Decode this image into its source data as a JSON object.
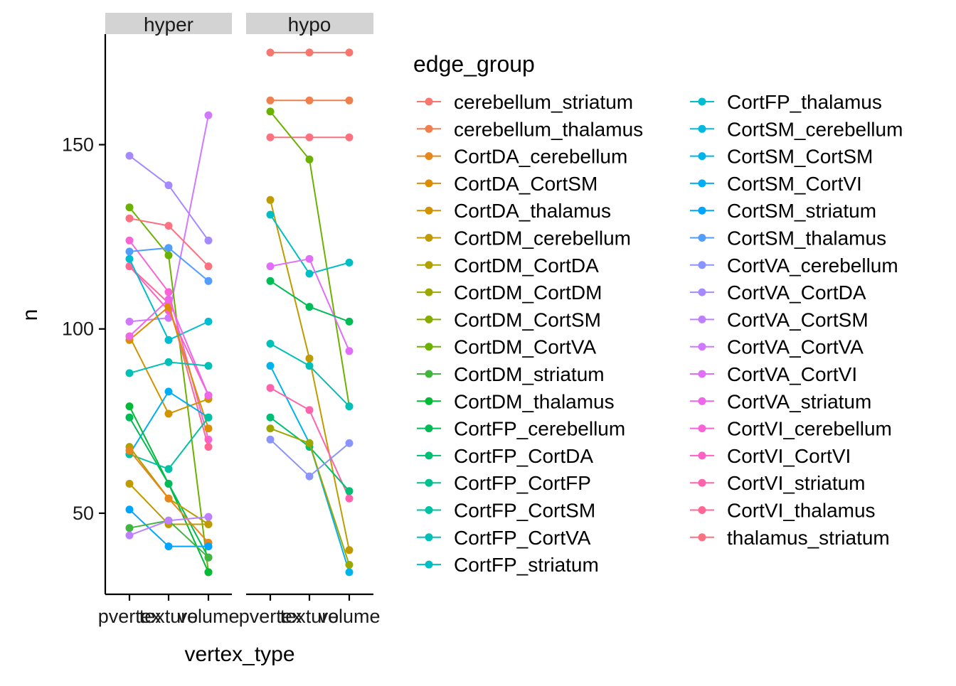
{
  "chart_data": {
    "type": "line",
    "x": [
      "pvertex",
      "texture",
      "volume"
    ],
    "xlabel": "vertex_type",
    "ylabel": "n",
    "ylim": [
      28,
      180
    ],
    "yticks": [
      50,
      100,
      150
    ],
    "grid": false,
    "legend_title": "edge_group",
    "legend_position": "right",
    "facets": [
      "hyper",
      "hypo"
    ],
    "groups": [
      {
        "name": "cerebellum_striatum",
        "color": "#F8766D"
      },
      {
        "name": "cerebellum_thalamus",
        "color": "#F07F4E"
      },
      {
        "name": "CortDA_cerebellum",
        "color": "#E7861B"
      },
      {
        "name": "CortDA_CortSM",
        "color": "#DB8E00"
      },
      {
        "name": "CortDA_thalamus",
        "color": "#CF9400"
      },
      {
        "name": "CortDM_cerebellum",
        "color": "#C09B00"
      },
      {
        "name": "CortDM_CortDA",
        "color": "#AFA100"
      },
      {
        "name": "CortDM_CortDM",
        "color": "#9CA700"
      },
      {
        "name": "CortDM_CortSM",
        "color": "#86AC00"
      },
      {
        "name": "CortDM_CortVA",
        "color": "#6BB100"
      },
      {
        "name": "CortDM_striatum",
        "color": "#42B540"
      },
      {
        "name": "CortDM_thalamus",
        "color": "#00BA38"
      },
      {
        "name": "CortFP_cerebellum",
        "color": "#00BC56"
      },
      {
        "name": "CortFP_CortDA",
        "color": "#00BF74"
      },
      {
        "name": "CortFP_CortFP",
        "color": "#00C08D"
      },
      {
        "name": "CortFP_CortSM",
        "color": "#00C1A3"
      },
      {
        "name": "CortFP_CortVA",
        "color": "#00C0B8"
      },
      {
        "name": "CortFP_striatum",
        "color": "#00BFC4"
      },
      {
        "name": "CortFP_thalamus",
        "color": "#00BDD0"
      },
      {
        "name": "CortSM_cerebellum",
        "color": "#00B9DE"
      },
      {
        "name": "CortSM_CortSM",
        "color": "#00B4EB"
      },
      {
        "name": "CortSM_CortVI",
        "color": "#00AEF6"
      },
      {
        "name": "CortSM_striatum",
        "color": "#00A5FF"
      },
      {
        "name": "CortSM_thalamus",
        "color": "#529EFF"
      },
      {
        "name": "CortVA_cerebellum",
        "color": "#8A94FF"
      },
      {
        "name": "CortVA_CortDA",
        "color": "#A58AFF"
      },
      {
        "name": "CortVA_CortSM",
        "color": "#BD81FF"
      },
      {
        "name": "CortVA_CortVA",
        "color": "#D078FF"
      },
      {
        "name": "CortVA_CortVI",
        "color": "#E26EF7"
      },
      {
        "name": "CortVA_striatum",
        "color": "#EE67E8"
      },
      {
        "name": "CortVI_cerebellum",
        "color": "#F863D7"
      },
      {
        "name": "CortVI_CortVI",
        "color": "#FD61C3"
      },
      {
        "name": "CortVI_striatum",
        "color": "#FF63AD"
      },
      {
        "name": "CortVI_thalamus",
        "color": "#FF6795"
      },
      {
        "name": "thalamus_striatum",
        "color": "#FC717F"
      }
    ],
    "series": {
      "hyper": [
        {
          "group": "CortVA_CortDA",
          "values": [
            147,
            139,
            124
          ]
        },
        {
          "group": "CortVA_CortVA",
          "values": [
            102,
            103,
            158
          ]
        },
        {
          "group": "CortDM_CortVA",
          "values": [
            133,
            120,
            34
          ]
        },
        {
          "group": "thalamus_striatum",
          "values": [
            130,
            128,
            117
          ]
        },
        {
          "group": "CortVI_cerebellum",
          "values": [
            124,
            110,
            70
          ]
        },
        {
          "group": "CortVI_CortVI",
          "values": [
            117,
            105,
            82
          ]
        },
        {
          "group": "CortVI_thalamus",
          "values": [
            117,
            107,
            68
          ]
        },
        {
          "group": "CortFP_thalamus",
          "values": [
            119,
            97,
            102
          ]
        },
        {
          "group": "CortSM_thalamus",
          "values": [
            121,
            122,
            113
          ]
        },
        {
          "group": "CortDA_CortSM",
          "values": [
            97,
            106,
            73
          ]
        },
        {
          "group": "CortDA_thalamus",
          "values": [
            98,
            77,
            81
          ]
        },
        {
          "group": "CortVA_striatum",
          "values": [
            98,
            108,
            82
          ]
        },
        {
          "group": "CortFP_CortVA",
          "values": [
            88,
            91,
            90
          ]
        },
        {
          "group": "CortSM_CortVI",
          "values": [
            66,
            83,
            76
          ]
        },
        {
          "group": "CortDM_thalamus",
          "values": [
            79,
            58,
            34
          ]
        },
        {
          "group": "CortFP_cerebellum",
          "values": [
            76,
            58,
            38
          ]
        },
        {
          "group": "CortFP_CortSM",
          "values": [
            66,
            62,
            76
          ]
        },
        {
          "group": "CortDM_CortDA",
          "values": [
            68,
            54,
            47
          ]
        },
        {
          "group": "CortDA_cerebellum",
          "values": [
            67,
            54,
            42
          ]
        },
        {
          "group": "CortDM_cerebellum",
          "values": [
            58,
            47,
            47
          ]
        },
        {
          "group": "CortSM_striatum",
          "values": [
            51,
            41,
            41
          ]
        },
        {
          "group": "CortDM_striatum",
          "values": [
            46,
            48,
            38
          ]
        },
        {
          "group": "CortVA_CortSM",
          "values": [
            44,
            48,
            49
          ]
        }
      ],
      "hypo": [
        {
          "group": "cerebellum_striatum",
          "values": [
            175,
            175,
            175
          ]
        },
        {
          "group": "cerebellum_thalamus",
          "values": [
            162,
            162,
            162
          ]
        },
        {
          "group": "thalamus_striatum",
          "values": [
            152,
            152,
            152
          ]
        },
        {
          "group": "CortDM_CortVA",
          "values": [
            159,
            146,
            79
          ]
        },
        {
          "group": "CortDM_cerebellum",
          "values": [
            135,
            92,
            40
          ]
        },
        {
          "group": "CortFP_striatum",
          "values": [
            131,
            115,
            118
          ]
        },
        {
          "group": "CortVA_CortVI",
          "values": [
            117,
            119,
            94
          ]
        },
        {
          "group": "CortFP_cerebellum",
          "values": [
            113,
            106,
            102
          ]
        },
        {
          "group": "CortFP_CortVA",
          "values": [
            96,
            90,
            79
          ]
        },
        {
          "group": "CortSM_CortSM",
          "values": [
            90,
            69,
            34
          ]
        },
        {
          "group": "CortVI_striatum",
          "values": [
            84,
            78,
            54
          ]
        },
        {
          "group": "CortFP_CortDA",
          "values": [
            76,
            68,
            56
          ]
        },
        {
          "group": "CortDM_CortDM",
          "values": [
            73,
            69,
            36
          ]
        },
        {
          "group": "CortVA_cerebellum",
          "values": [
            70,
            60,
            69
          ]
        }
      ]
    }
  }
}
